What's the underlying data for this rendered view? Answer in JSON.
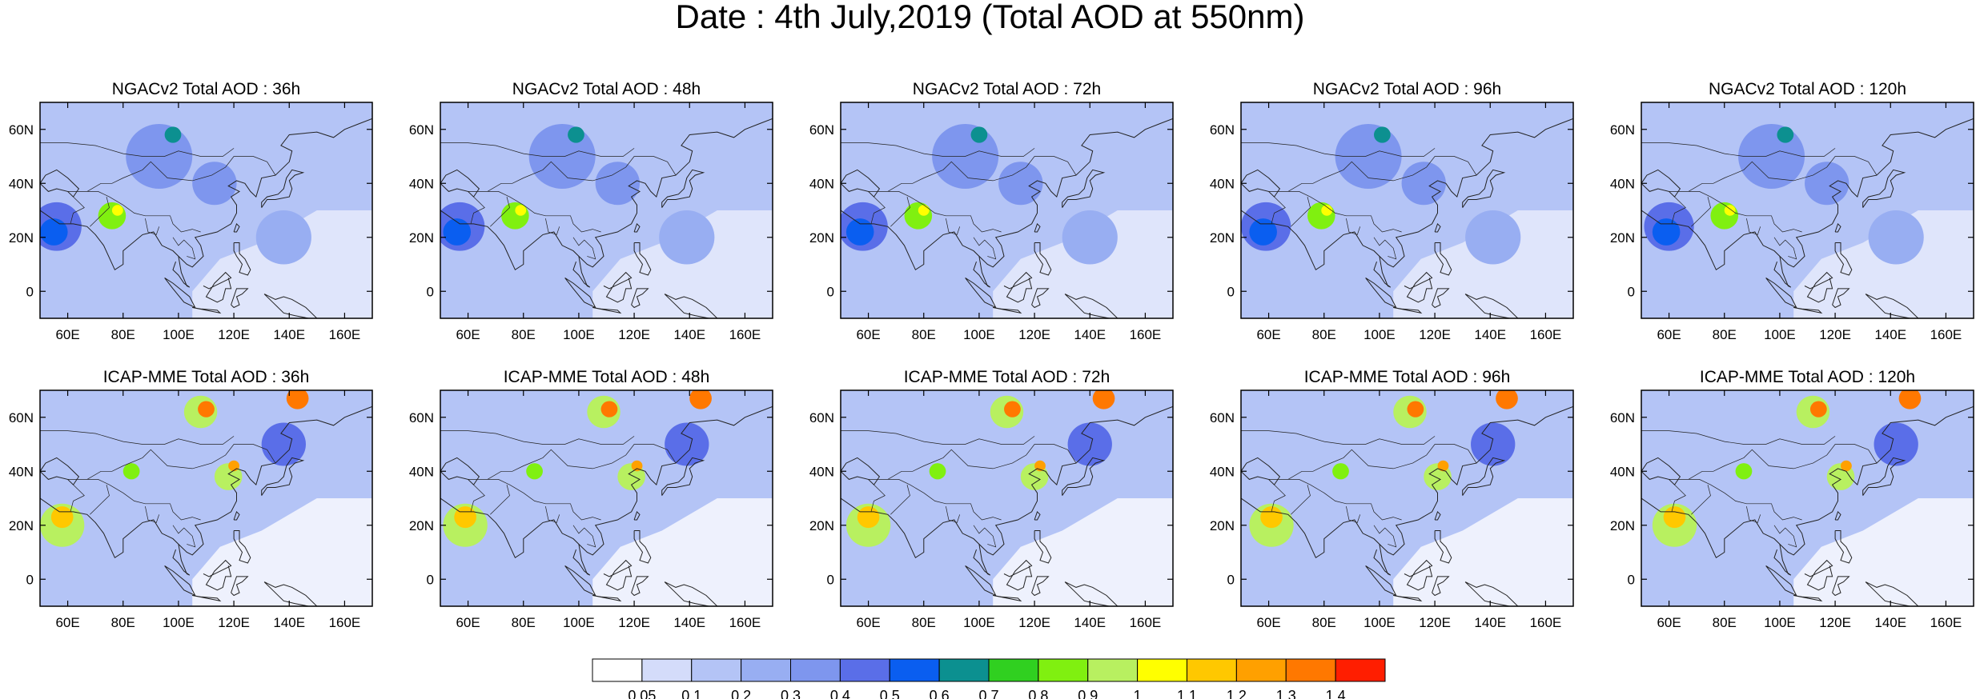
{
  "title": "Date : 4th July,2019 (Total AOD at 550nm)",
  "panels": [
    {
      "title": "NGACv2 Total AOD : 36h",
      "model": "NGACv2",
      "lead": "36h"
    },
    {
      "title": "NGACv2 Total AOD : 48h",
      "model": "NGACv2",
      "lead": "48h"
    },
    {
      "title": "NGACv2 Total AOD : 72h",
      "model": "NGACv2",
      "lead": "72h"
    },
    {
      "title": "NGACv2 Total AOD : 96h",
      "model": "NGACv2",
      "lead": "96h"
    },
    {
      "title": "NGACv2 Total AOD : 120h",
      "model": "NGACv2",
      "lead": "120h"
    },
    {
      "title": "ICAP-MME Total AOD : 36h",
      "model": "ICAP-MME",
      "lead": "36h"
    },
    {
      "title": "ICAP-MME Total AOD : 48h",
      "model": "ICAP-MME",
      "lead": "48h"
    },
    {
      "title": "ICAP-MME Total AOD : 72h",
      "model": "ICAP-MME",
      "lead": "72h"
    },
    {
      "title": "ICAP-MME Total AOD : 96h",
      "model": "ICAP-MME",
      "lead": "96h"
    },
    {
      "title": "ICAP-MME Total AOD : 120h",
      "model": "ICAP-MME",
      "lead": "120h"
    }
  ],
  "map_extent": {
    "lon": [
      50,
      170
    ],
    "lat": [
      -10,
      70
    ]
  },
  "lat_ticks": [
    {
      "value": 60,
      "label": "60N"
    },
    {
      "value": 40,
      "label": "40N"
    },
    {
      "value": 20,
      "label": "20N"
    },
    {
      "value": 0,
      "label": "0"
    }
  ],
  "lon_ticks": [
    {
      "value": 60,
      "label": "60E"
    },
    {
      "value": 80,
      "label": "80E"
    },
    {
      "value": 100,
      "label": "100E"
    },
    {
      "value": 120,
      "label": "120E"
    },
    {
      "value": 140,
      "label": "140E"
    },
    {
      "value": 160,
      "label": "160E"
    }
  ],
  "colorbar": {
    "colors": [
      "#ffffff",
      "#d4dcfa",
      "#b4c4f6",
      "#98aef2",
      "#7e96ee",
      "#5a6ee8",
      "#0a5ef0",
      "#0c9090",
      "#30d020",
      "#80f010",
      "#b8f060",
      "#ffff00",
      "#ffc800",
      "#ffa000",
      "#ff7800",
      "#ff1e00"
    ],
    "labels": [
      "0.05",
      "0.1",
      "0.2",
      "0.3",
      "0.4",
      "0.5",
      "0.6",
      "0.7",
      "0.8",
      "0.9",
      "1",
      "1.1",
      "1.2",
      "1.3",
      "1.4"
    ]
  },
  "features": {
    "background": "#b4c4f6",
    "ngac": [
      {
        "lon": 57,
        "lat": 22,
        "r": 5,
        "v": 0.55
      },
      {
        "lon": 58,
        "lat": 24,
        "r": 9,
        "v": 0.45
      },
      {
        "lon": 78,
        "lat": 28,
        "r": 5,
        "v": 0.8
      },
      {
        "lon": 80,
        "lat": 30,
        "r": 2,
        "v": 1.05
      },
      {
        "lon": 100,
        "lat": 58,
        "r": 3,
        "v": 0.6
      },
      {
        "lon": 115,
        "lat": 40,
        "r": 8,
        "v": 0.35
      },
      {
        "lon": 95,
        "lat": 50,
        "r": 12,
        "v": 0.32
      },
      {
        "lon": 140,
        "lat": 20,
        "r": 10,
        "v": 0.25
      }
    ],
    "icap": [
      {
        "lon": 60,
        "lat": 20,
        "r": 8,
        "v": 0.9
      },
      {
        "lon": 60,
        "lat": 23,
        "r": 4,
        "v": 1.15
      },
      {
        "lon": 110,
        "lat": 62,
        "r": 6,
        "v": 0.95
      },
      {
        "lon": 112,
        "lat": 63,
        "r": 3,
        "v": 1.3
      },
      {
        "lon": 120,
        "lat": 38,
        "r": 5,
        "v": 0.9
      },
      {
        "lon": 122,
        "lat": 42,
        "r": 2,
        "v": 1.25
      },
      {
        "lon": 145,
        "lat": 67,
        "r": 4,
        "v": 1.35
      },
      {
        "lon": 85,
        "lat": 40,
        "r": 3,
        "v": 0.8
      },
      {
        "lon": 140,
        "lat": 50,
        "r": 8,
        "v": 0.45
      }
    ]
  }
}
